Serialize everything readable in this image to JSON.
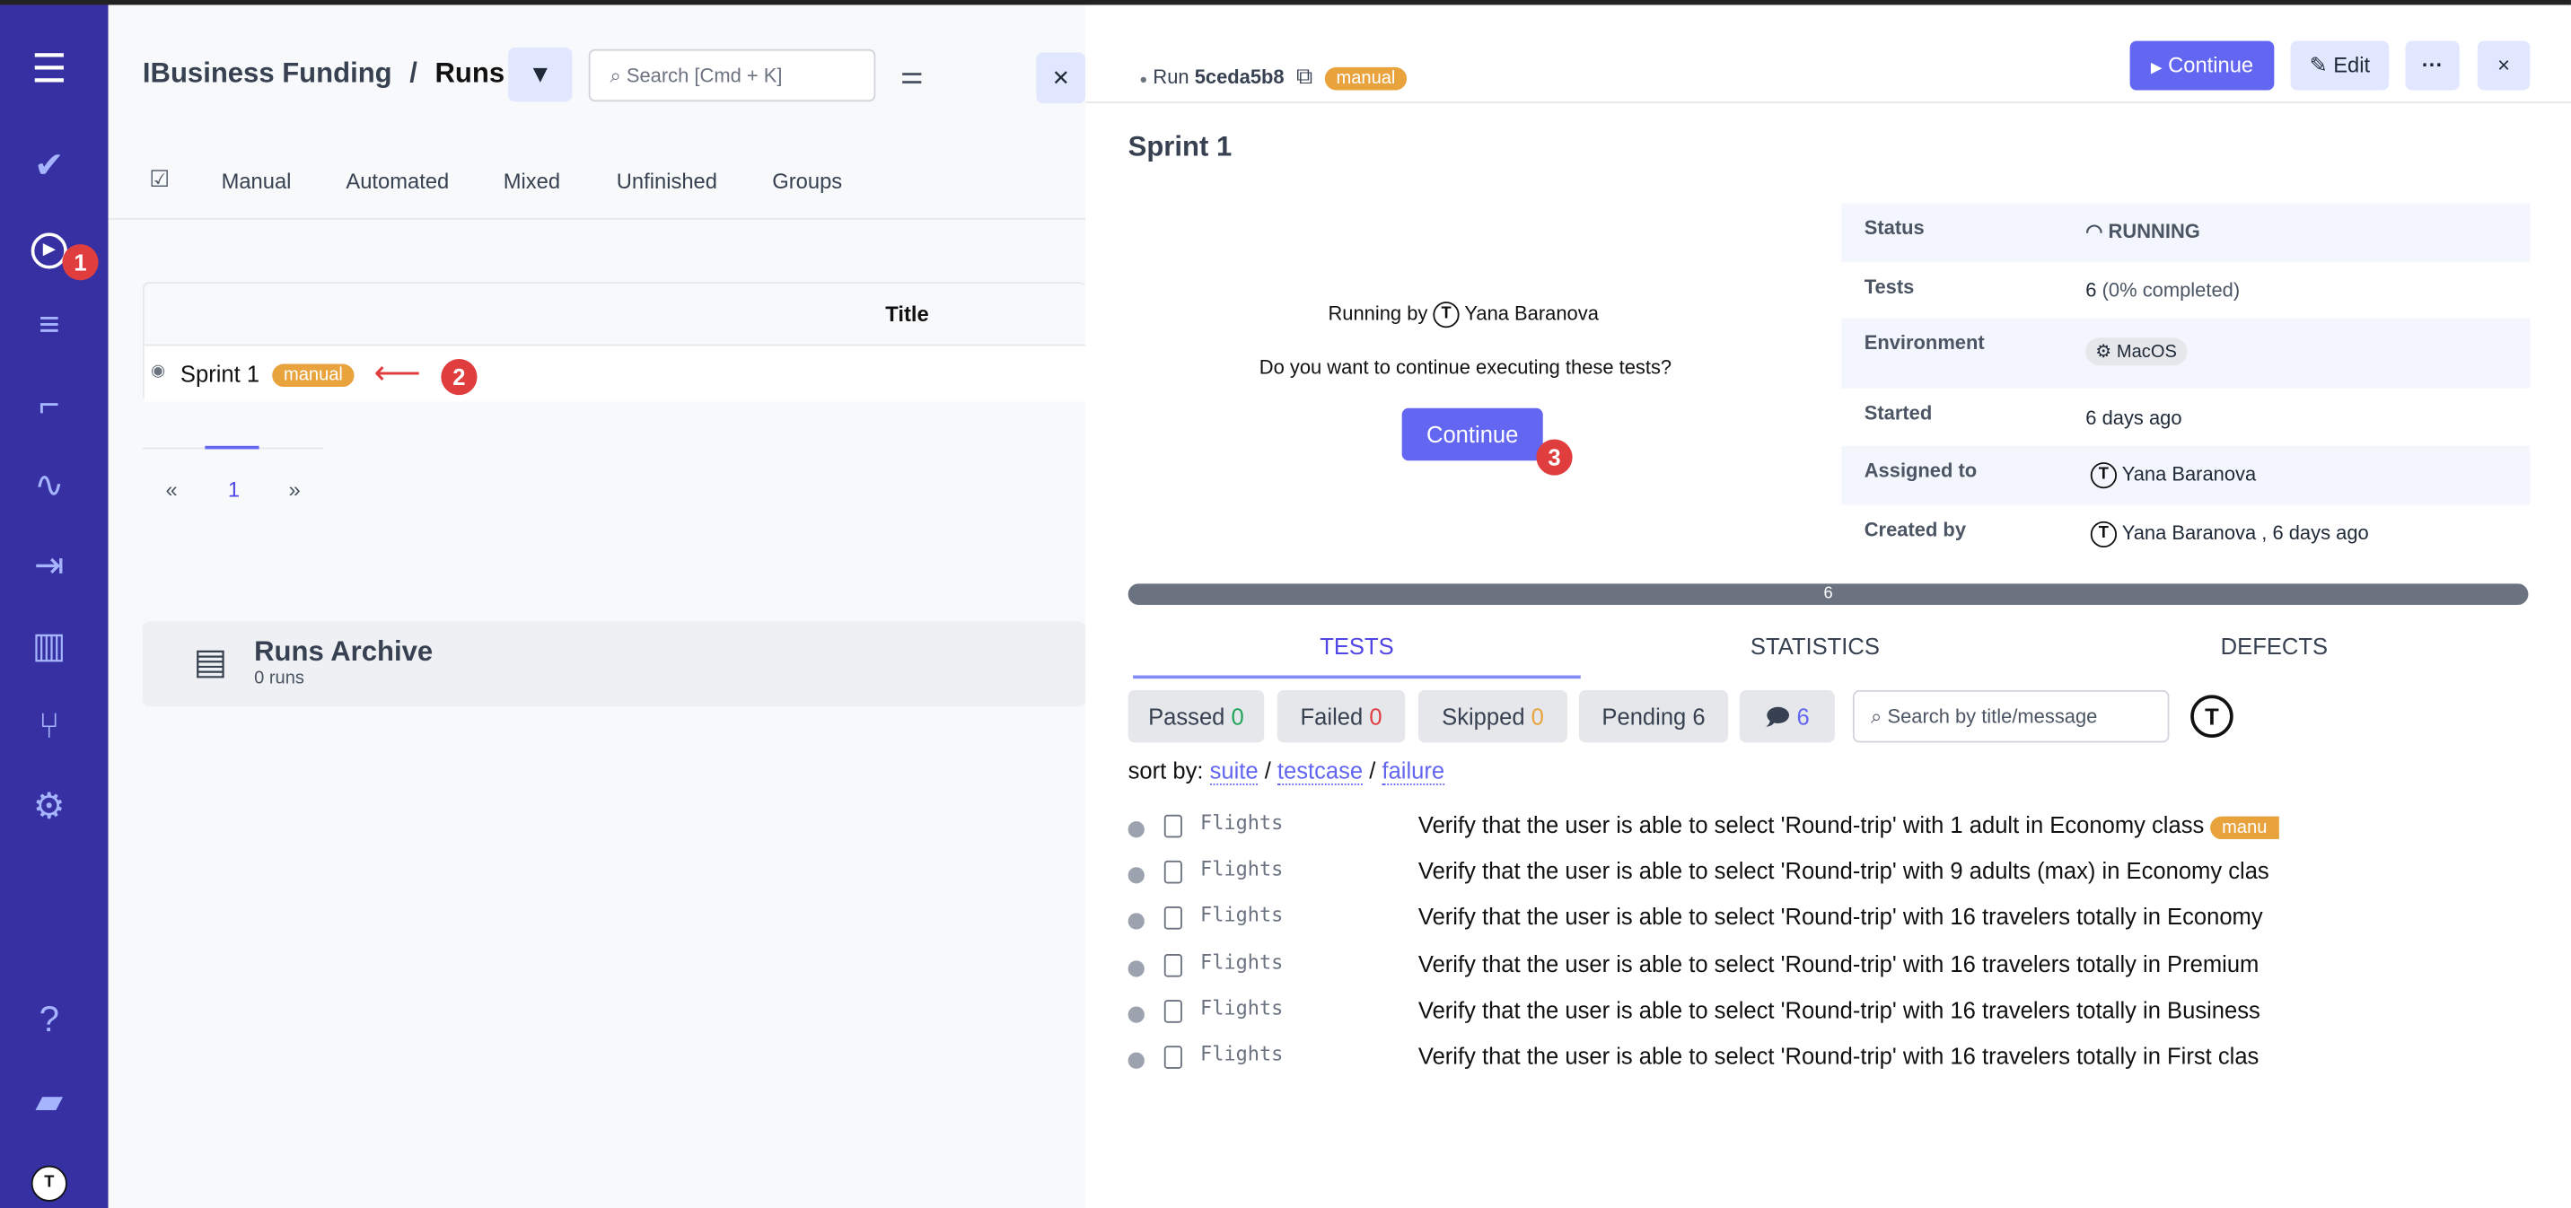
{
  "sidebar": {
    "icons": [
      "menu-icon",
      "check-icon",
      "play-circle-icon",
      "list-check-icon",
      "steps-icon",
      "pulse-icon",
      "import-icon",
      "chart-icon",
      "branch-icon",
      "gear-icon",
      "help-icon",
      "folder-icon",
      "avatar"
    ],
    "marker": "1"
  },
  "header": {
    "project": "IBusiness Funding",
    "separator": "/",
    "page": "Runs",
    "search_placeholder": "Search [Cmd + K]"
  },
  "filters": [
    "Manual",
    "Automated",
    "Mixed",
    "Unfinished",
    "Groups"
  ],
  "table": {
    "column_title": "Title",
    "rows": [
      {
        "title": "Sprint 1",
        "badge": "manual"
      }
    ],
    "marker": "2"
  },
  "pagination": {
    "prev": "«",
    "current": "1",
    "next": "»"
  },
  "archive": {
    "title": "Runs Archive",
    "count": "0 runs"
  },
  "run": {
    "label": "Run",
    "id": "5ceda5b8",
    "badge": "manual",
    "continue_label": "Continue",
    "edit_label": "Edit",
    "more_label": "···",
    "close_label": "×",
    "title": "Sprint 1"
  },
  "prompt": {
    "running_by": "Running by",
    "user": "Yana Baranova",
    "question": "Do you want to continue executing these tests?",
    "continue_label": "Continue",
    "marker": "3"
  },
  "info": {
    "status_label": "Status",
    "status": "RUNNING",
    "tests_label": "Tests",
    "tests": "6",
    "tests_pct": "(0% completed)",
    "env_label": "Environment",
    "env": "MacOS",
    "started_label": "Started",
    "started": "6 days ago",
    "assigned_label": "Assigned to",
    "assigned": "Yana Baranova",
    "created_label": "Created by",
    "created": "Yana Baranova , 6 days ago"
  },
  "progress": {
    "label": "6",
    "pending": 6,
    "total": 6
  },
  "tabs": {
    "tests": "TESTS",
    "statistics": "STATISTICS",
    "defects": "DEFECTS"
  },
  "chips": {
    "passed": "Passed",
    "passed_n": "0",
    "failed": "Failed",
    "failed_n": "0",
    "skipped": "Skipped",
    "skipped_n": "0",
    "pending": "Pending 6",
    "notes_n": "6"
  },
  "test_search_placeholder": "Search by title/message",
  "sort": {
    "label": "sort by:",
    "suite": "suite",
    "testcase": "testcase",
    "failure": "failure"
  },
  "tests": [
    {
      "suite": "Flights",
      "title": "Verify that the user is able to select 'Round-trip' with 1 adult in Economy class",
      "badge": "manu"
    },
    {
      "suite": "Flights",
      "title": "Verify that the user is able to select 'Round-trip' with 9 adults (max) in Economy clas"
    },
    {
      "suite": "Flights",
      "title": "Verify that the user is able to select 'Round-trip' with 16 travelers totally in Economy"
    },
    {
      "suite": "Flights",
      "title": "Verify that the user is able to select 'Round-trip' with 16 travelers totally in Premium"
    },
    {
      "suite": "Flights",
      "title": "Verify that the user is able to select 'Round-trip' with 16 travelers totally in Business"
    },
    {
      "suite": "Flights",
      "title": "Verify that the user is able to select 'Round-trip' with 16 travelers totally in First clas"
    }
  ],
  "colors": {
    "sidebar": "#3730a3",
    "accent": "#6366f1",
    "badge": "#e8a33d",
    "marker": "#e03e3e"
  }
}
